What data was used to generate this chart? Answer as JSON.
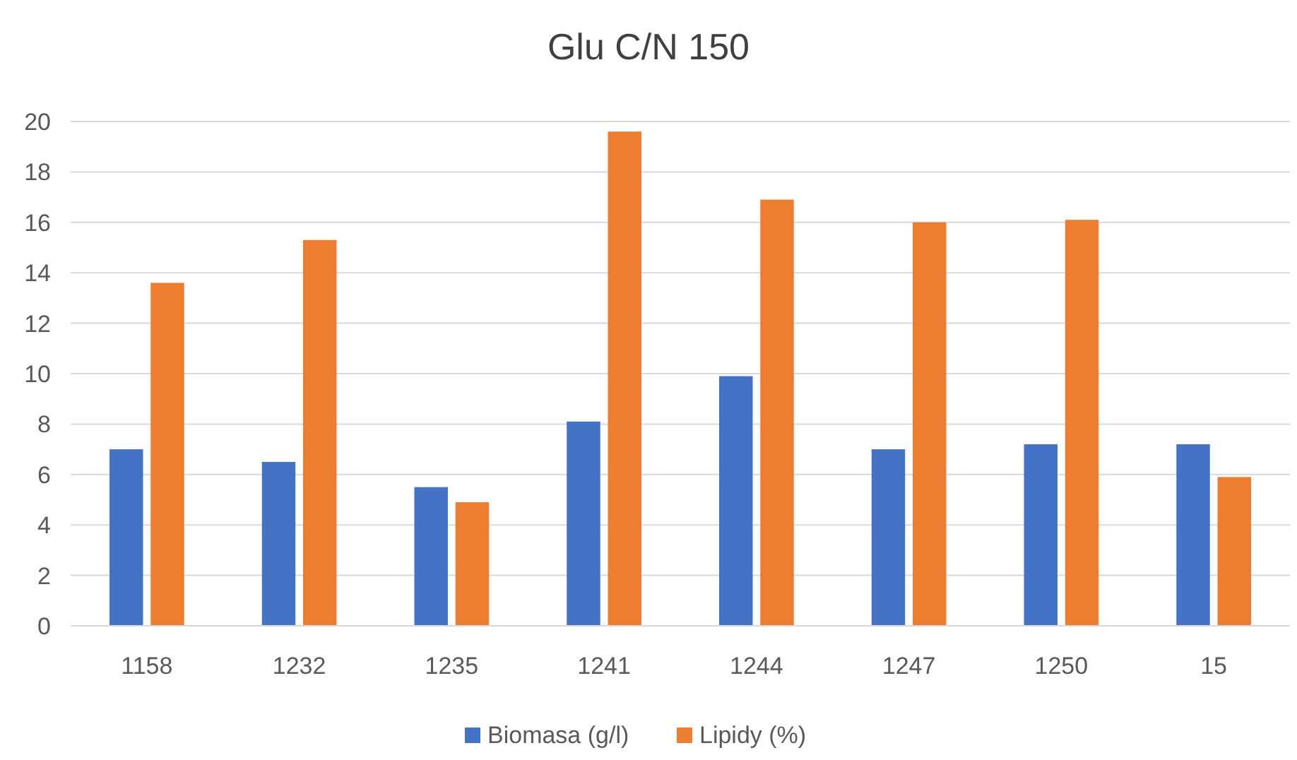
{
  "chart_data": {
    "type": "bar",
    "title": "Glu C/N 150",
    "categories": [
      "1158",
      "1232",
      "1235",
      "1241",
      "1244",
      "1247",
      "1250",
      "15"
    ],
    "series": [
      {
        "name": "Biomasa (g/l)",
        "color": "#4472c4",
        "values": [
          7.0,
          6.5,
          5.5,
          8.1,
          9.9,
          7.0,
          7.2,
          7.2
        ]
      },
      {
        "name": "Lipidy (%)",
        "color": "#ed7d31",
        "values": [
          13.6,
          15.3,
          4.9,
          19.6,
          16.9,
          16.0,
          16.1,
          5.9
        ]
      }
    ],
    "ylim": [
      0,
      20
    ],
    "yticks": [
      0,
      2,
      4,
      6,
      8,
      10,
      12,
      14,
      16,
      18,
      20
    ],
    "grid": "y",
    "legend": "bottom"
  }
}
